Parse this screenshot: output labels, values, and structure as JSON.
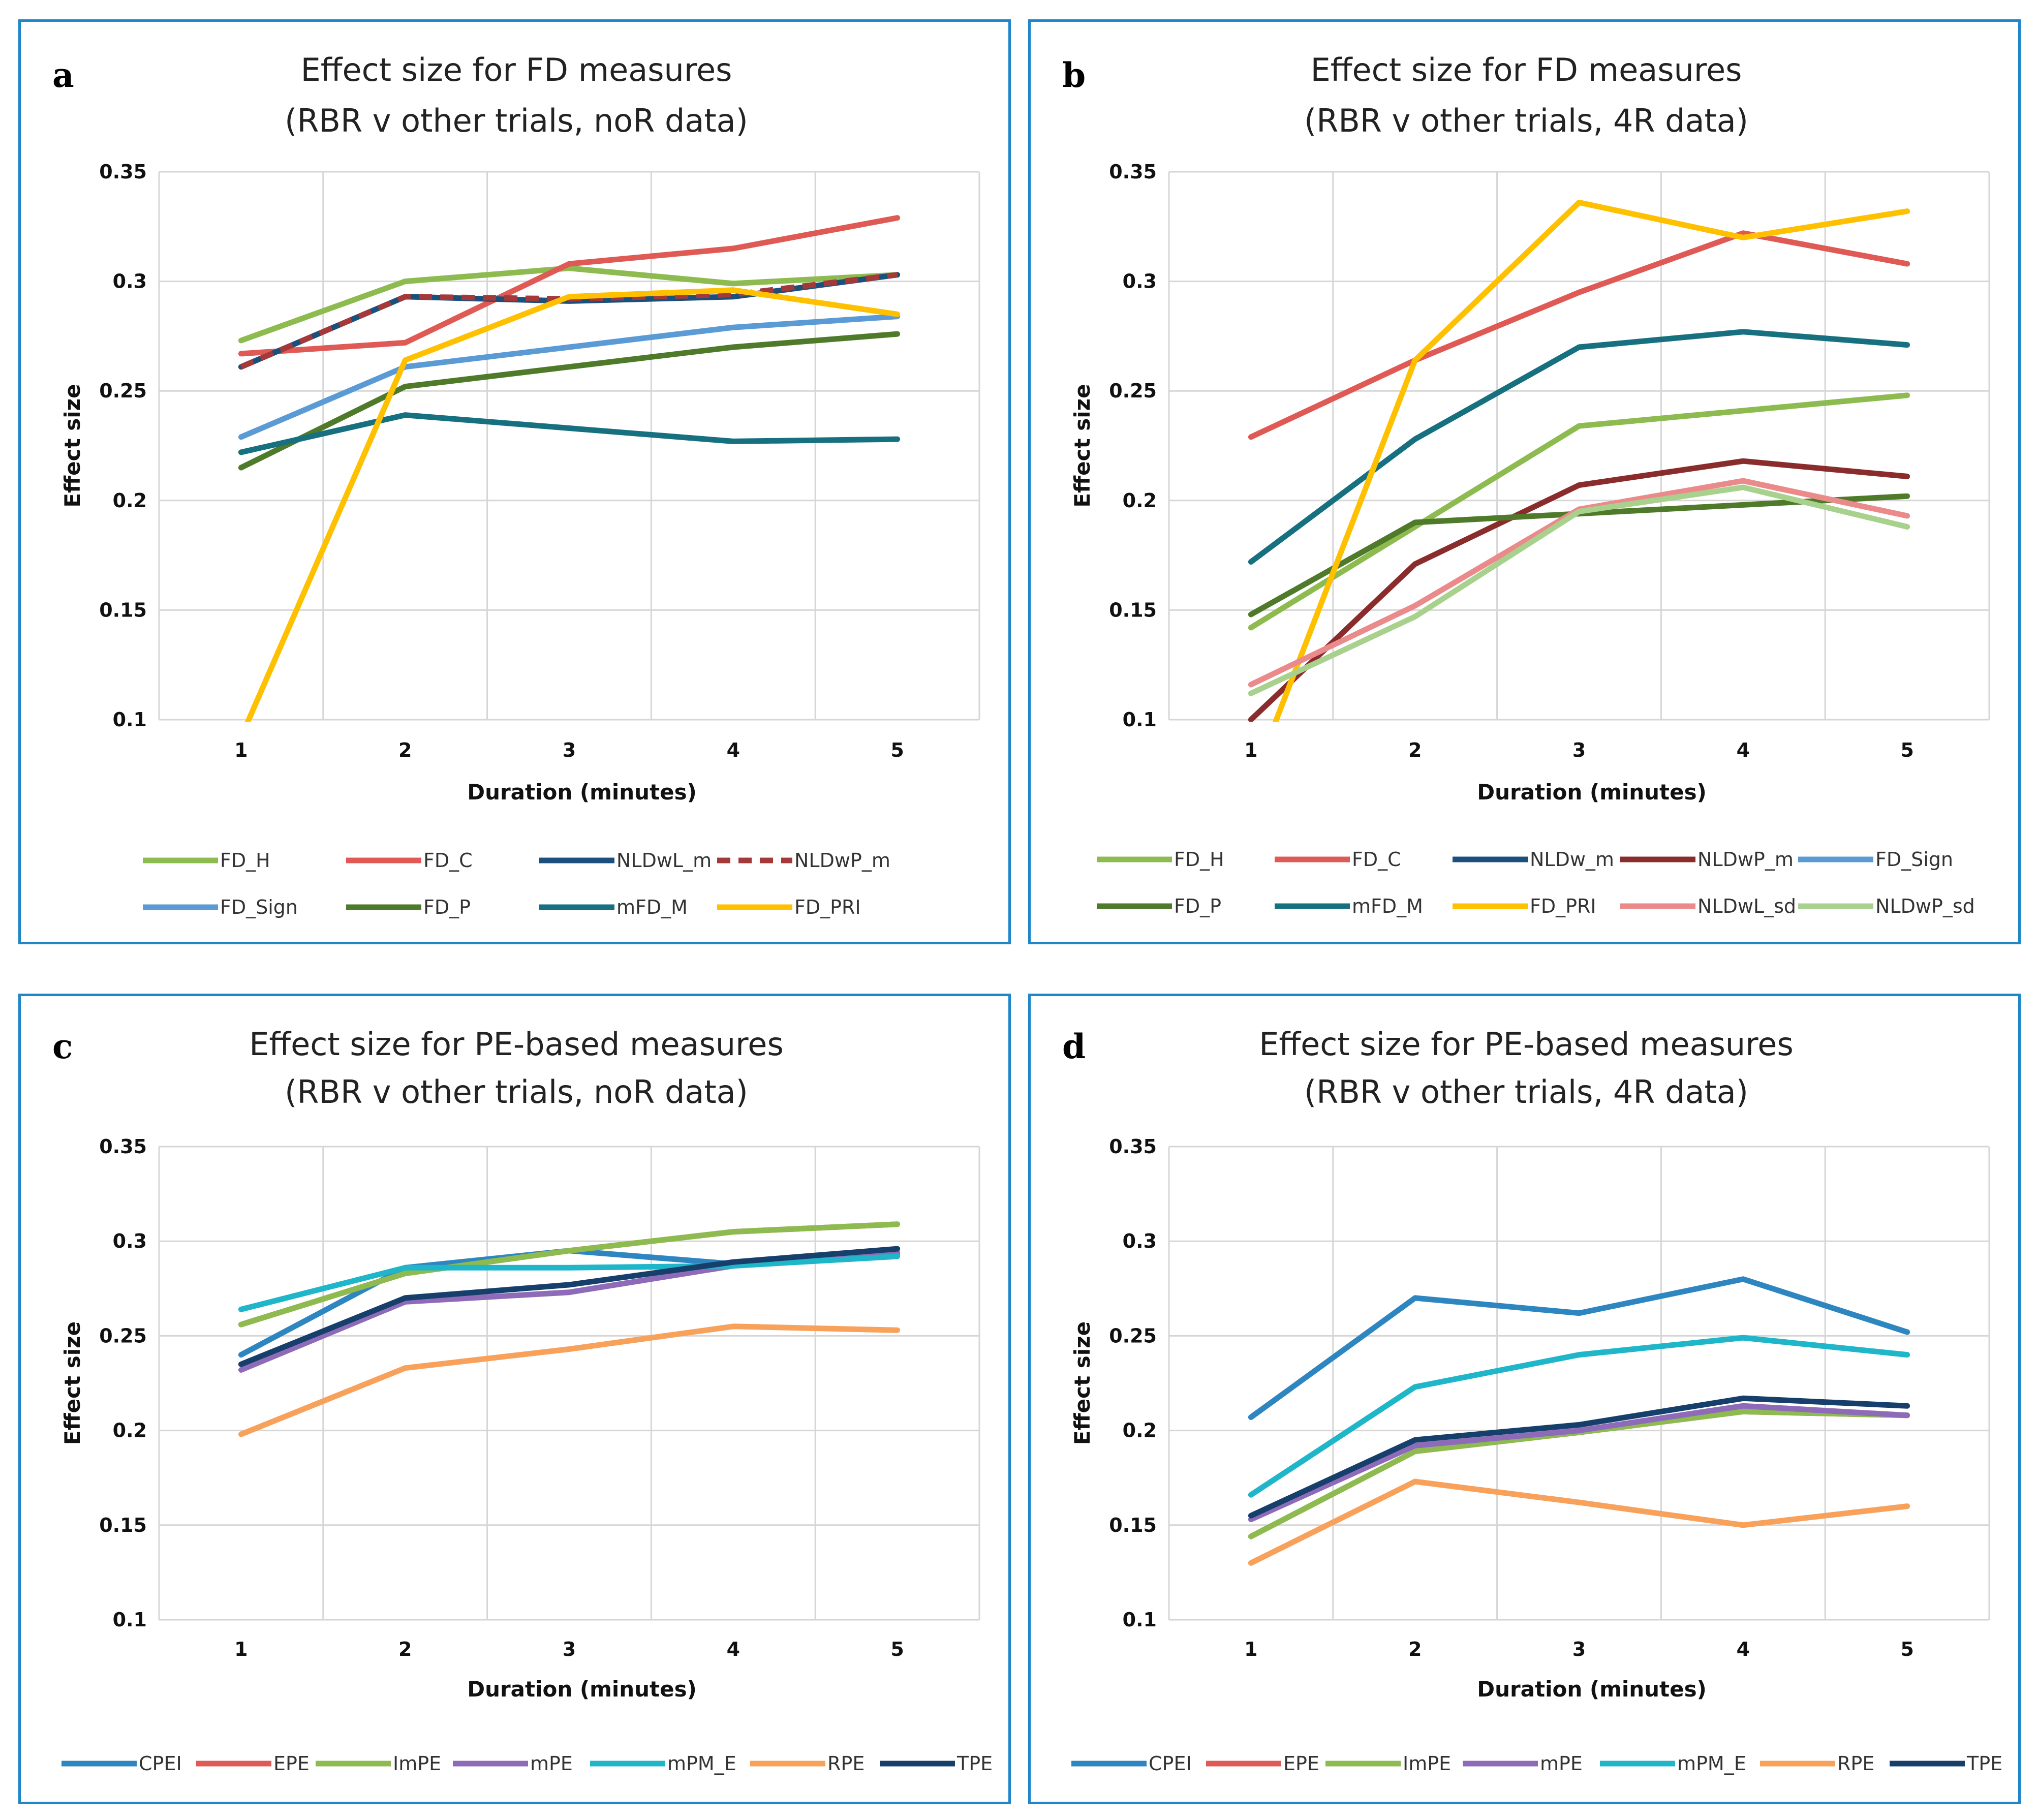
{
  "chart_data": [
    {
      "type": "line",
      "panel_letter": "a",
      "title": [
        "Effect size for FD measures",
        "(RBR v other trials, noR data)"
      ],
      "xlabel": "Duration (minutes)",
      "ylabel": "Effect size",
      "x": [
        1,
        2,
        3,
        4,
        5
      ],
      "x_tick_labels": [
        "1",
        "2",
        "3",
        "4",
        "5"
      ],
      "ylim": [
        0.1,
        0.35
      ],
      "y_tick_labels": [
        "0.1",
        "0.15",
        "0.2",
        "0.25",
        "0.3",
        "0.35"
      ],
      "grid": true,
      "legend_columns": 4,
      "series": [
        {
          "name": "FD_H",
          "color": "#8dbb4f",
          "values": [
            0.273,
            0.3,
            0.306,
            0.299,
            0.303
          ]
        },
        {
          "name": "FD_C",
          "color": "#e05a55",
          "values": [
            0.267,
            0.272,
            0.308,
            0.315,
            0.329
          ]
        },
        {
          "name": "NLDwL_m",
          "color": "#1b4f7c",
          "values": [
            0.261,
            0.293,
            0.291,
            0.293,
            0.303
          ]
        },
        {
          "name": "NLDwP_m",
          "color": "#a4393a",
          "dashed": true,
          "values": [
            0.261,
            0.293,
            0.292,
            0.294,
            0.303
          ]
        },
        {
          "name": "FD_Sign",
          "color": "#5b9bd5",
          "values": [
            0.229,
            0.261,
            0.27,
            0.279,
            0.284
          ]
        },
        {
          "name": "FD_P",
          "color": "#4e7a2a",
          "values": [
            0.215,
            0.252,
            0.261,
            0.27,
            0.276
          ]
        },
        {
          "name": "mFD_M",
          "color": "#17707f",
          "values": [
            0.222,
            0.239,
            0.233,
            0.227,
            0.228
          ]
        },
        {
          "name": "FD_PRI",
          "color": "#ffc000",
          "values": [
            0.092,
            0.264,
            0.293,
            0.296,
            0.285
          ]
        }
      ]
    },
    {
      "type": "line",
      "panel_letter": "b",
      "title": [
        "Effect size for FD measures",
        "(RBR v other trials, 4R data)"
      ],
      "xlabel": "Duration (minutes)",
      "ylabel": "Effect size",
      "x": [
        1,
        2,
        3,
        4,
        5
      ],
      "x_tick_labels": [
        "1",
        "2",
        "3",
        "4",
        "5"
      ],
      "ylim": [
        0.1,
        0.35
      ],
      "y_tick_labels": [
        "0.1",
        "0.15",
        "0.2",
        "0.25",
        "0.3",
        "0.35"
      ],
      "grid": true,
      "legend_columns": 5,
      "series": [
        {
          "name": "FD_H",
          "color": "#8dbb4f",
          "values": [
            0.142,
            0.188,
            0.234,
            0.241,
            0.248
          ]
        },
        {
          "name": "FD_C",
          "color": "#e05a55",
          "values": [
            0.229,
            0.264,
            0.295,
            0.322,
            0.308
          ]
        },
        {
          "name": "NLDw_m",
          "color": "#1b4f7c",
          "values": [
            null,
            null,
            null,
            null,
            null
          ]
        },
        {
          "name": "NLDwP_m",
          "color": "#8b2c2c",
          "values": [
            0.1,
            0.171,
            0.207,
            0.218,
            0.211
          ]
        },
        {
          "name": "FD_Sign",
          "color": "#5b9bd5",
          "values": [
            null,
            null,
            null,
            null,
            null
          ]
        },
        {
          "name": "FD_P",
          "color": "#4e7a2a",
          "values": [
            0.148,
            0.19,
            0.194,
            0.198,
            0.202
          ]
        },
        {
          "name": "mFD_M",
          "color": "#17707f",
          "values": [
            0.172,
            0.228,
            0.27,
            0.277,
            0.271
          ]
        },
        {
          "name": "FD_PRI",
          "color": "#ffc000",
          "values": [
            0.07,
            0.264,
            0.336,
            0.32,
            0.332
          ]
        },
        {
          "name": "NLDwL_sd",
          "color": "#ea8a8a",
          "values": [
            0.116,
            0.152,
            0.196,
            0.209,
            0.193
          ]
        },
        {
          "name": "NLDwP_sd",
          "color": "#a9d18e",
          "values": [
            0.112,
            0.147,
            0.195,
            0.206,
            0.188
          ]
        }
      ]
    },
    {
      "type": "line",
      "panel_letter": "c",
      "title": [
        "Effect size for PE-based measures",
        "(RBR v other trials, noR data)"
      ],
      "xlabel": "Duration (minutes)",
      "ylabel": "Effect size",
      "x": [
        1,
        2,
        3,
        4,
        5
      ],
      "x_tick_labels": [
        "1",
        "2",
        "3",
        "4",
        "5"
      ],
      "ylim": [
        0.1,
        0.35
      ],
      "y_tick_labels": [
        "0.1",
        "0.15",
        "0.2",
        "0.25",
        "0.3",
        "0.35"
      ],
      "grid": true,
      "legend_columns": 7,
      "series": [
        {
          "name": "CPEI",
          "color": "#2e86c1",
          "values": [
            0.24,
            0.286,
            0.295,
            0.288,
            0.293
          ]
        },
        {
          "name": "EPE",
          "color": "#e05a55",
          "values": [
            0.256,
            0.283,
            0.295,
            0.305,
            0.309
          ]
        },
        {
          "name": "ImPE",
          "color": "#8dbb4f",
          "values": [
            0.256,
            0.283,
            0.295,
            0.305,
            0.309
          ]
        },
        {
          "name": "mPE",
          "color": "#8e6bb8",
          "values": [
            0.232,
            0.268,
            0.273,
            0.287,
            0.294
          ]
        },
        {
          "name": "mPM_E",
          "color": "#1fb6c9",
          "values": [
            0.264,
            0.286,
            0.286,
            0.287,
            0.292
          ]
        },
        {
          "name": "RPE",
          "color": "#f8a15b",
          "values": [
            0.198,
            0.233,
            0.243,
            0.255,
            0.253
          ]
        },
        {
          "name": "TPE",
          "color": "#173f6b",
          "values": [
            0.235,
            0.27,
            0.277,
            0.289,
            0.296
          ]
        }
      ]
    },
    {
      "type": "line",
      "panel_letter": "d",
      "title": [
        "Effect size for PE-based measures",
        "(RBR v other trials, 4R data)"
      ],
      "xlabel": "Duration (minutes)",
      "ylabel": "Effect size",
      "x": [
        1,
        2,
        3,
        4,
        5
      ],
      "x_tick_labels": [
        "1",
        "2",
        "3",
        "4",
        "5"
      ],
      "ylim": [
        0.1,
        0.35
      ],
      "y_tick_labels": [
        "0.1",
        "0.15",
        "0.2",
        "0.25",
        "0.3",
        "0.35"
      ],
      "grid": true,
      "legend_columns": 7,
      "series": [
        {
          "name": "CPEI",
          "color": "#2e86c1",
          "values": [
            0.207,
            0.27,
            0.262,
            0.28,
            0.252
          ]
        },
        {
          "name": "EPE",
          "color": "#e05a55",
          "values": [
            0.144,
            0.189,
            0.199,
            0.21,
            0.208
          ]
        },
        {
          "name": "ImPE",
          "color": "#8dbb4f",
          "values": [
            0.144,
            0.189,
            0.199,
            0.21,
            0.208
          ]
        },
        {
          "name": "mPE",
          "color": "#8e6bb8",
          "values": [
            0.153,
            0.192,
            0.2,
            0.213,
            0.208
          ]
        },
        {
          "name": "mPM_E",
          "color": "#1fb6c9",
          "values": [
            0.166,
            0.223,
            0.24,
            0.249,
            0.24
          ]
        },
        {
          "name": "RPE",
          "color": "#f8a15b",
          "values": [
            0.13,
            0.173,
            0.162,
            0.15,
            0.16
          ]
        },
        {
          "name": "TPE",
          "color": "#173f6b",
          "values": [
            0.155,
            0.195,
            0.203,
            0.217,
            0.213
          ]
        }
      ]
    }
  ]
}
